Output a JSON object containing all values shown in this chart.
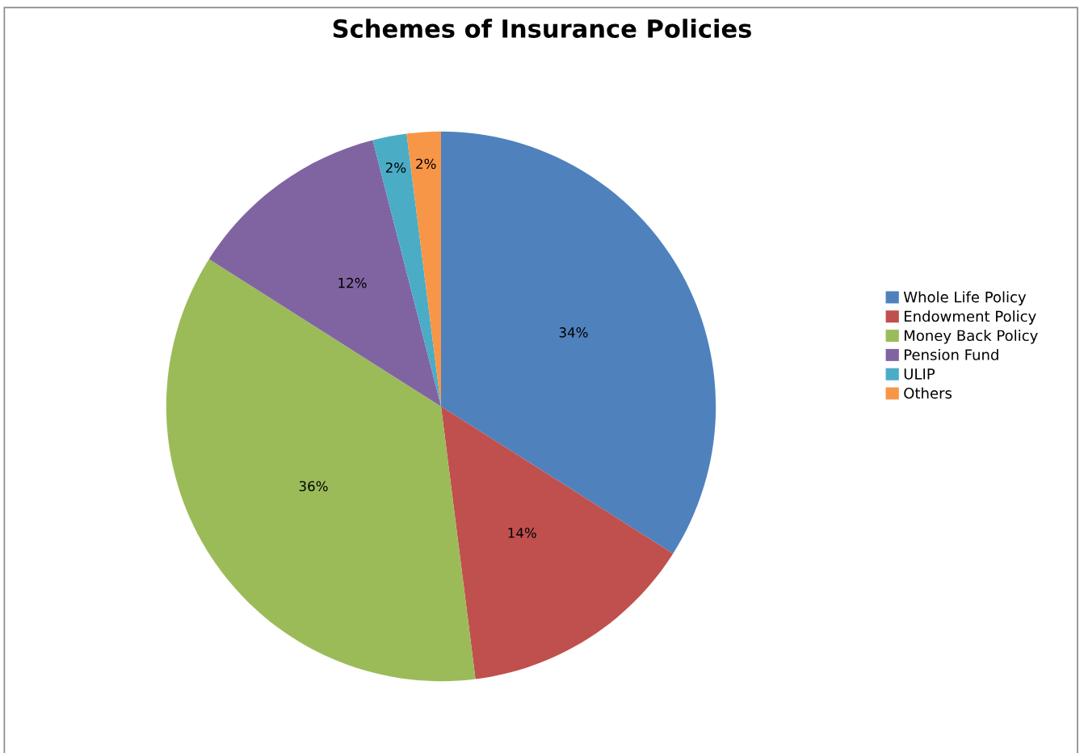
{
  "chart_data": {
    "type": "pie",
    "title": "Schemes of Insurance Policies",
    "categories": [
      "Whole Life Policy",
      "Endowment Policy",
      "Money Back Policy",
      "Pension Fund",
      "ULIP",
      "Others"
    ],
    "values": [
      34,
      14,
      36,
      12,
      2,
      2
    ],
    "value_labels": [
      "34%",
      "14%",
      "36%",
      "12%",
      "2%",
      "2%"
    ],
    "colors": [
      "#4f81bd",
      "#c0504d",
      "#9bbb59",
      "#8064a2",
      "#4bacc6",
      "#f79646"
    ],
    "legend": "right"
  }
}
